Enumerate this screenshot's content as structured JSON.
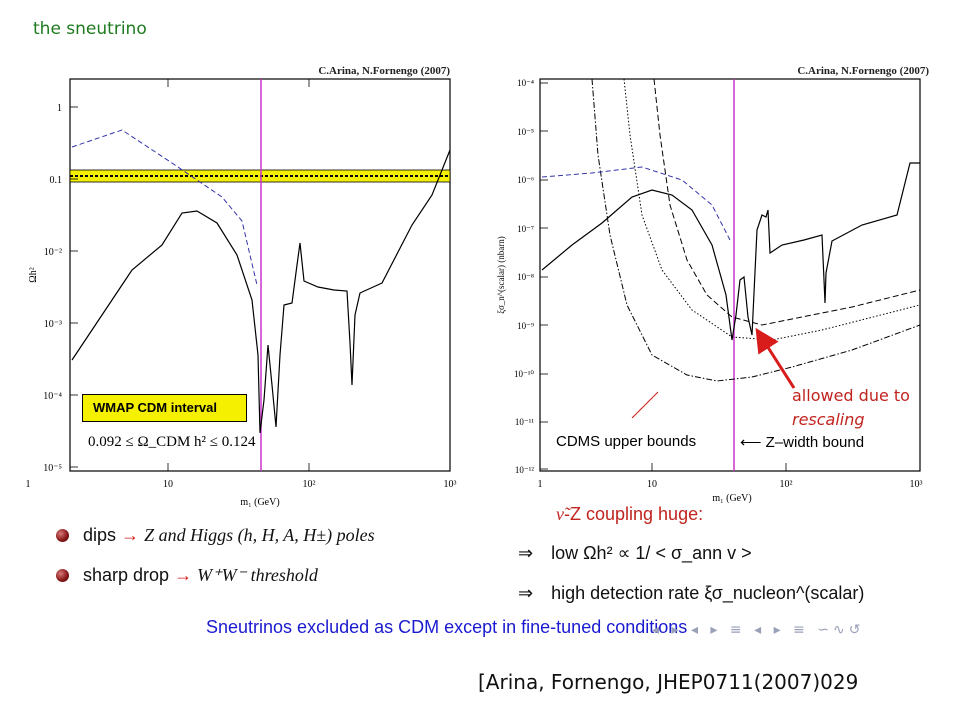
{
  "slide": {
    "title": "the sneutrino",
    "reference": "[Arina, Fornengo, JHEP0711(2007)029"
  },
  "left_plot": {
    "credit": "C.Arina, N.Fornengo (2007)",
    "xlabel": "m₁ (GeV)",
    "ylabel": "Ωh²",
    "x_ticks": [
      "1",
      "10",
      "10²",
      "10³"
    ],
    "y_ticks": [
      "1",
      "0.1",
      "10⁻²",
      "10⁻³",
      "10⁻⁴",
      "10⁻⁵"
    ],
    "wmap_label": "WMAP CDM interval",
    "wmap_range_text": "0.092 ≤ Ω_CDM h² ≤ 0.124",
    "colors": {
      "band": "#f5f000",
      "vertical_line": "#cc33cc",
      "dashed": "#3333aa",
      "solid": "#000000"
    }
  },
  "right_plot": {
    "credit": "C.Arina, N.Fornengo (2007)",
    "xlabel": "m₁ (GeV)",
    "ylabel": "ξσ_n^(scalar) (nbarn)",
    "x_ticks": [
      "1",
      "10",
      "10²",
      "10³"
    ],
    "y_ticks": [
      "10⁻⁴",
      "10⁻⁵",
      "10⁻⁶",
      "10⁻⁷",
      "10⁻⁸",
      "10⁻⁹",
      "10⁻¹⁰",
      "10⁻¹¹",
      "10⁻¹²"
    ],
    "cdms_label": "CDMS upper bounds",
    "zwidth_label": "⟵ Z–width bound"
  },
  "bullets": [
    {
      "prefix": "dips",
      "arrow": "→",
      "text": "Z and Higgs (h, H, A, H±) poles"
    },
    {
      "prefix": "sharp drop",
      "arrow": "→",
      "text": "W⁺W⁻ threshold"
    }
  ],
  "coupling": {
    "symbol": "ν̃",
    "text": "-Z coupling huge:"
  },
  "implications": [
    {
      "arrow": "⇒",
      "text": "low Ωh² ∝ 1/ < σ_ann v >"
    },
    {
      "arrow": "⇒",
      "text": "high detection rate ξσ_nucleon^(scalar)"
    }
  ],
  "note": {
    "line1": "allowed due to",
    "line2": "rescaling"
  },
  "conclusion": "Sneutrinos excluded as CDM except in fine-tuned conditions",
  "nav_icons": "◂ ▸ ◂ ▸ ≡ ◂ ▸ ≡ ∽∿↺"
}
